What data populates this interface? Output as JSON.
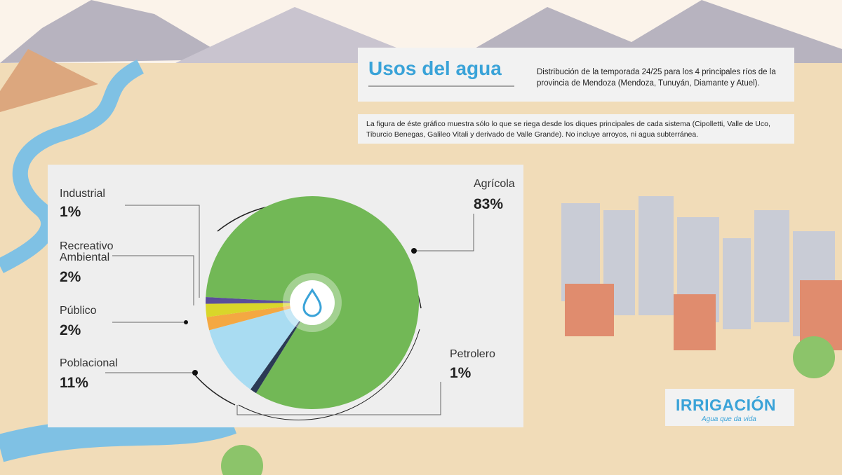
{
  "chart_data": {
    "type": "pie",
    "title": "Usos del agua",
    "subtitle": "Distribución de la temporada 24/25 para los 4 principales ríos de la provincia de Mendoza (Mendoza, Tunuyán, Diamante y Atuel).",
    "note": "La figura de éste gráfico muestra sólo lo que se riega desde los diques principales de cada sistema (Cipolletti, Valle de Uco, Tiburcio Benegas, Galileo Vitali y derivado de Valle Grande). No incluye arroyos, ni agua subterránea.",
    "categories": [
      "Agrícola",
      "Petrolero",
      "Poblacional",
      "Público",
      "Recreativo Ambiental",
      "Industrial"
    ],
    "values": [
      83,
      1,
      11,
      2,
      2,
      1
    ],
    "value_labels": [
      "83%",
      "1%",
      "11%",
      "2%",
      "2%",
      "1%"
    ],
    "colors": [
      "#72b856",
      "#2b3a55",
      "#a9dcf2",
      "#f4a842",
      "#d9d62a",
      "#5a4d9a"
    ],
    "logo": {
      "name": "IRRIGACIÓN",
      "tagline": "Agua que da vida"
    }
  }
}
